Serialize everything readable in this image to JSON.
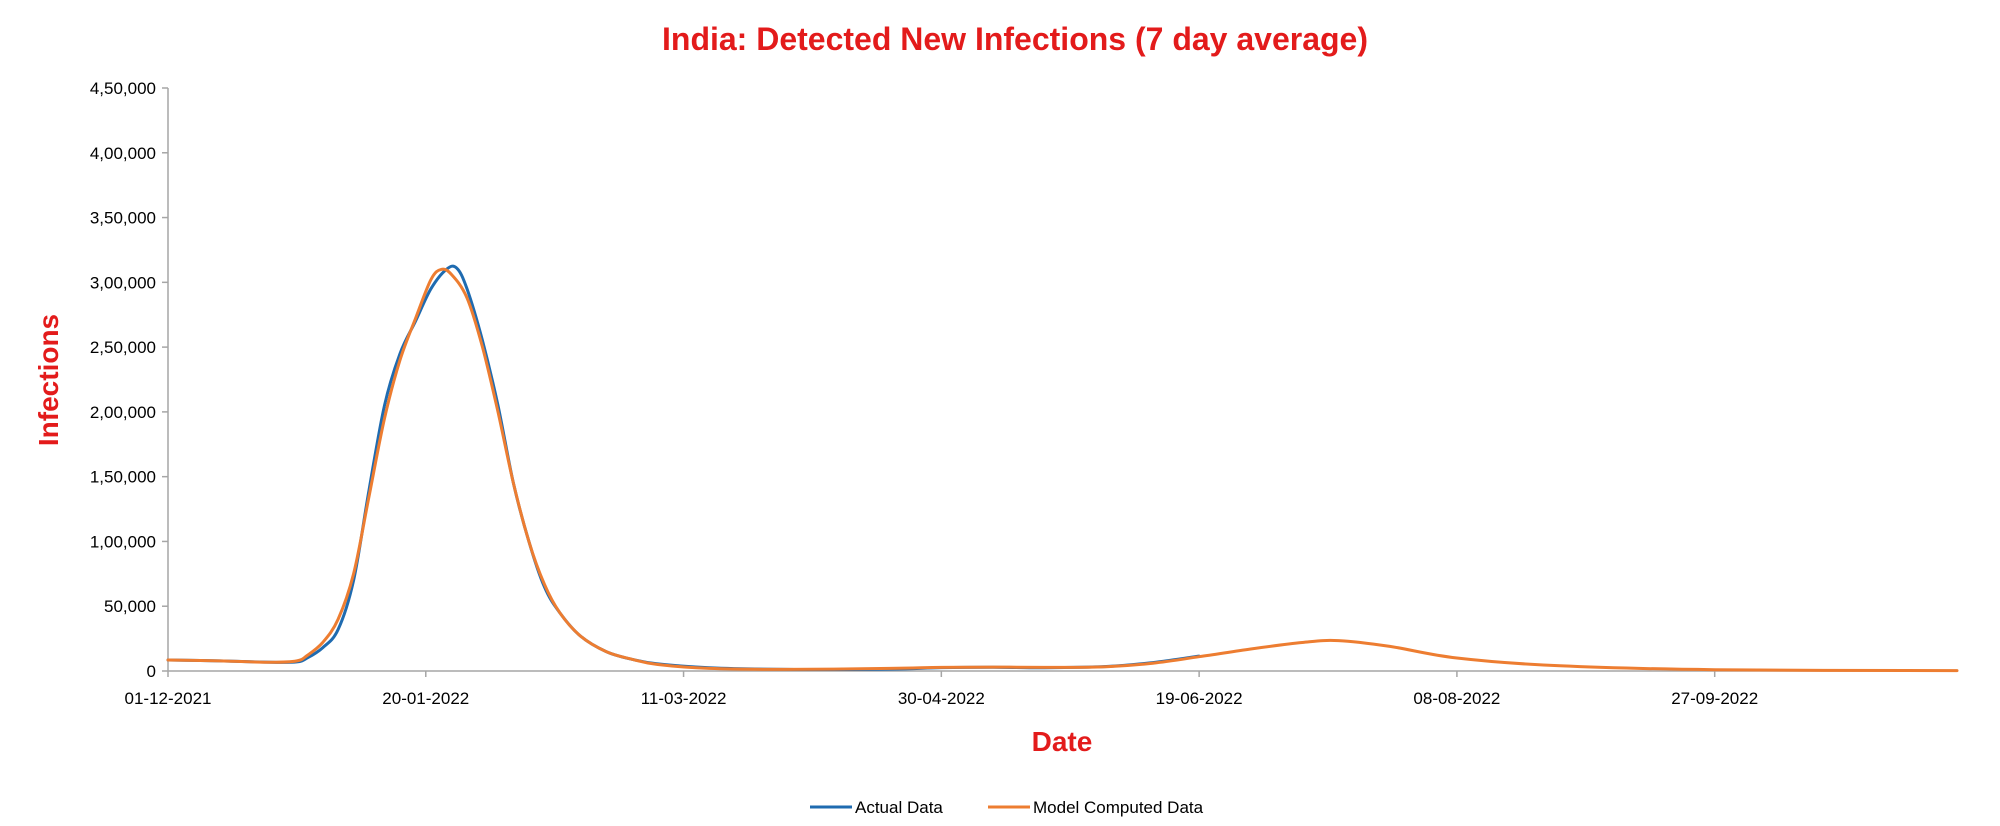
{
  "chart_data": {
    "type": "line",
    "title": "India: Detected New Infections (7 day average)",
    "xlabel": "Date",
    "ylabel": "Infections",
    "x_start": "01-12-2021",
    "x_end": "13-11-2022",
    "ylim": [
      0,
      450000
    ],
    "y_ticks": [
      0,
      50000,
      100000,
      150000,
      200000,
      250000,
      300000,
      350000,
      400000,
      450000
    ],
    "y_tick_labels": [
      "0",
      "50,000",
      "1,00,000",
      "1,50,000",
      "2,00,000",
      "2,50,000",
      "3,00,000",
      "3,50,000",
      "4,00,000",
      "4,50,000"
    ],
    "x_tick_labels": [
      "01-12-2021",
      "20-01-2022",
      "11-03-2022",
      "30-04-2022",
      "19-06-2022",
      "08-08-2022",
      "27-09-2022"
    ],
    "grid": false,
    "legend_position": "bottom",
    "series": [
      {
        "name": "Actual Data",
        "color": "#1f6bb0",
        "points": [
          [
            "01-12-2021",
            8500
          ],
          [
            "11-12-2021",
            7800
          ],
          [
            "21-12-2021",
            6700
          ],
          [
            "26-12-2021",
            7000
          ],
          [
            "28-12-2021",
            10000
          ],
          [
            "31-12-2021",
            18000
          ],
          [
            "03-01-2022",
            32000
          ],
          [
            "06-01-2022",
            70000
          ],
          [
            "09-01-2022",
            140000
          ],
          [
            "12-01-2022",
            205000
          ],
          [
            "15-01-2022",
            245000
          ],
          [
            "18-01-2022",
            270000
          ],
          [
            "21-01-2022",
            295000
          ],
          [
            "24-01-2022",
            310000
          ],
          [
            "26-01-2022",
            311000
          ],
          [
            "28-01-2022",
            295000
          ],
          [
            "31-01-2022",
            255000
          ],
          [
            "03-02-2022",
            205000
          ],
          [
            "06-02-2022",
            145000
          ],
          [
            "09-02-2022",
            100000
          ],
          [
            "12-02-2022",
            65000
          ],
          [
            "15-02-2022",
            45000
          ],
          [
            "19-02-2022",
            27000
          ],
          [
            "24-02-2022",
            15000
          ],
          [
            "01-03-2022",
            9000
          ],
          [
            "06-03-2022",
            5500
          ],
          [
            "16-03-2022",
            2500
          ],
          [
            "31-03-2022",
            1200
          ],
          [
            "20-04-2022",
            1500
          ],
          [
            "30-04-2022",
            2600
          ],
          [
            "10-05-2022",
            2900
          ],
          [
            "20-05-2022",
            2500
          ],
          [
            "01-06-2022",
            3500
          ],
          [
            "10-06-2022",
            6500
          ],
          [
            "19-06-2022",
            11500
          ]
        ]
      },
      {
        "name": "Model Computed Data",
        "color": "#ed7d31",
        "points": [
          [
            "01-12-2021",
            8500
          ],
          [
            "11-12-2021",
            7800
          ],
          [
            "21-12-2021",
            6700
          ],
          [
            "26-12-2021",
            7800
          ],
          [
            "28-12-2021",
            12000
          ],
          [
            "31-12-2021",
            22000
          ],
          [
            "03-01-2022",
            40000
          ],
          [
            "06-01-2022",
            75000
          ],
          [
            "09-01-2022",
            135000
          ],
          [
            "12-01-2022",
            195000
          ],
          [
            "15-01-2022",
            240000
          ],
          [
            "18-01-2022",
            272000
          ],
          [
            "21-01-2022",
            302000
          ],
          [
            "23-01-2022",
            310000
          ],
          [
            "25-01-2022",
            306000
          ],
          [
            "28-01-2022",
            288000
          ],
          [
            "31-01-2022",
            250000
          ],
          [
            "03-02-2022",
            200000
          ],
          [
            "06-02-2022",
            145000
          ],
          [
            "09-02-2022",
            100000
          ],
          [
            "12-02-2022",
            67000
          ],
          [
            "15-02-2022",
            45000
          ],
          [
            "19-02-2022",
            27000
          ],
          [
            "24-02-2022",
            15000
          ],
          [
            "01-03-2022",
            9000
          ],
          [
            "06-03-2022",
            5000
          ],
          [
            "16-03-2022",
            2000
          ],
          [
            "31-03-2022",
            1200
          ],
          [
            "20-04-2022",
            2000
          ],
          [
            "30-04-2022",
            2800
          ],
          [
            "10-05-2022",
            3000
          ],
          [
            "20-05-2022",
            2800
          ],
          [
            "01-06-2022",
            3300
          ],
          [
            "10-06-2022",
            6000
          ],
          [
            "19-06-2022",
            11000
          ],
          [
            "29-06-2022",
            17000
          ],
          [
            "09-07-2022",
            22000
          ],
          [
            "16-07-2022",
            23500
          ],
          [
            "26-07-2022",
            19000
          ],
          [
            "08-08-2022",
            10000
          ],
          [
            "28-08-2022",
            4000
          ],
          [
            "27-09-2022",
            1000
          ],
          [
            "13-11-2022",
            300
          ]
        ]
      }
    ]
  }
}
